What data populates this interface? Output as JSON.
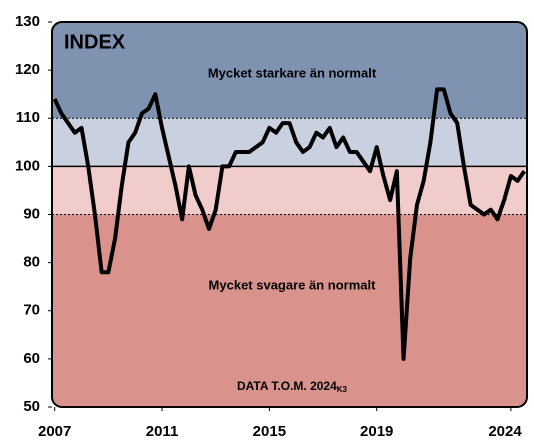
{
  "chart_data": {
    "type": "line",
    "title": "INDEX",
    "annotations": {
      "upper": "Mycket starkare än normalt",
      "lower": "Mycket svagare än normalt",
      "source": "DATA T.O.M. 2024",
      "source_sub": "K3"
    },
    "x": [
      2007.0,
      2007.25,
      2007.5,
      2007.75,
      2008.0,
      2008.25,
      2008.5,
      2008.75,
      2009.0,
      2009.25,
      2009.5,
      2009.75,
      2010.0,
      2010.25,
      2010.5,
      2010.75,
      2011.0,
      2011.25,
      2011.5,
      2011.75,
      2012.0,
      2012.25,
      2012.5,
      2012.75,
      2013.0,
      2013.25,
      2013.5,
      2013.75,
      2014.0,
      2014.25,
      2014.5,
      2014.75,
      2015.0,
      2015.25,
      2015.5,
      2015.75,
      2016.0,
      2016.25,
      2016.5,
      2016.75,
      2017.0,
      2017.25,
      2017.5,
      2017.75,
      2018.0,
      2018.25,
      2018.5,
      2018.75,
      2019.0,
      2019.25,
      2019.5,
      2019.75,
      2020.0,
      2020.25,
      2020.5,
      2020.75,
      2021.0,
      2021.25,
      2021.5,
      2021.75,
      2022.0,
      2022.25,
      2022.5,
      2022.75,
      2023.0,
      2023.25,
      2023.5,
      2023.75,
      2024.0,
      2024.25,
      2024.5
    ],
    "series": [
      {
        "name": "INDEX",
        "color": "#000000",
        "values": [
          114,
          111,
          109,
          107,
          108,
          100,
          90,
          78,
          78,
          85,
          96,
          105,
          107,
          111,
          112,
          115,
          108,
          102,
          96,
          89,
          100,
          94,
          91,
          87,
          91,
          100,
          100,
          103,
          103,
          103,
          104,
          105,
          108,
          107,
          109,
          109,
          105,
          103,
          104,
          107,
          106,
          108,
          104,
          106,
          103,
          103,
          101,
          99,
          104,
          98,
          93,
          99,
          60,
          81,
          92,
          97,
          105,
          116,
          116,
          111,
          109,
          100,
          92,
          91,
          90,
          91,
          89,
          93,
          98,
          97,
          99
        ]
      }
    ],
    "bands": [
      {
        "from": 110,
        "to": 130,
        "color": "#7f92b0"
      },
      {
        "from": 100,
        "to": 110,
        "color": "#c9d0e0"
      },
      {
        "from": 90,
        "to": 100,
        "color": "#f0cdcb"
      },
      {
        "from": 50,
        "to": 90,
        "color": "#d9938c"
      }
    ],
    "xlim": [
      2006.9,
      2024.6
    ],
    "xticks": [
      2007,
      2011,
      2015,
      2019,
      2024
    ],
    "ylim": [
      50,
      130
    ],
    "yticks": [
      50,
      60,
      70,
      80,
      90,
      100,
      110,
      120,
      130
    ]
  }
}
